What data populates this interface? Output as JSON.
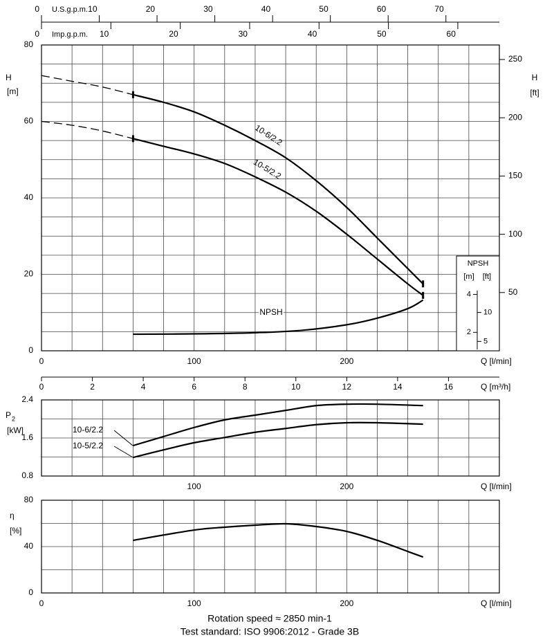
{
  "chart_data": [
    {
      "type": "line",
      "xlabel": "Q [l/min]",
      "ylabel": "H",
      "yunit": "[m]",
      "y2label": "H",
      "y2unit": "[ft]",
      "xlim": [
        0,
        300
      ],
      "xticks": [
        0,
        100,
        200
      ],
      "xgrid": [
        0,
        20,
        40,
        60,
        80,
        100,
        120,
        140,
        160,
        180,
        200,
        220,
        240,
        260,
        280,
        300
      ],
      "ylim": [
        0,
        80
      ],
      "yticks": [
        0,
        20,
        40,
        60,
        80
      ],
      "ygrid": [
        0,
        5,
        10,
        15,
        20,
        25,
        30,
        35,
        40,
        45,
        50,
        55,
        60,
        65,
        70,
        75,
        80
      ],
      "y2lim": [
        0,
        262.47
      ],
      "y2ticks": [
        50,
        100,
        150,
        200,
        250
      ],
      "top_axes": [
        {
          "label": "U.S.g.p.m.",
          "xlim": [
            0,
            79.25
          ],
          "xticks": [
            0,
            10,
            20,
            30,
            40,
            50,
            60,
            70
          ]
        },
        {
          "label": "Imp.g.p.m.",
          "xlim": [
            0,
            65.99
          ],
          "xticks": [
            0,
            10,
            20,
            30,
            40,
            50,
            60
          ]
        }
      ],
      "npsh_axis": {
        "title": "NPSH",
        "unit": "[m]",
        "unit2": "[ft]",
        "ylim": [
          1.1,
          4.2
        ],
        "yticks": [
          2,
          4
        ],
        "y2lim": [
          3.61,
          13.78
        ],
        "y2ticks": [
          5,
          10
        ]
      },
      "series": [
        {
          "name": "10-6/2.2",
          "color": "#000000",
          "segments": [
            {
              "style": "dashed",
              "x": [
                0,
                20,
                40,
                60
              ],
              "values": [
                72,
                70.5,
                69,
                67
              ]
            },
            {
              "style": "solid",
              "x": [
                60,
                80,
                100,
                120,
                140,
                160,
                180,
                200,
                220,
                240,
                250
              ],
              "values": [
                67,
                65,
                62.5,
                59,
                55,
                50.5,
                44.5,
                37.5,
                29.5,
                21.5,
                17.5
              ]
            }
          ]
        },
        {
          "name": "10-5/2.2",
          "color": "#000000",
          "segments": [
            {
              "style": "dashed",
              "x": [
                0,
                20,
                40,
                60
              ],
              "values": [
                60,
                59,
                57.5,
                55.5
              ]
            },
            {
              "style": "solid",
              "x": [
                60,
                80,
                100,
                120,
                140,
                160,
                180,
                200,
                220,
                240,
                250
              ],
              "values": [
                55.5,
                53.5,
                51.5,
                49,
                45.5,
                41.5,
                36.5,
                30.5,
                24,
                17.5,
                14.5
              ]
            }
          ]
        },
        {
          "name": "NPSH",
          "color": "#000000",
          "axis": "npsh",
          "segments": [
            {
              "style": "solid",
              "x": [
                60,
                100,
                140,
                170,
                200,
                220,
                240,
                250
              ],
              "values": [
                1.9,
                1.92,
                1.98,
                2.1,
                2.4,
                2.75,
                3.25,
                3.7
              ]
            }
          ]
        }
      ]
    },
    {
      "type": "line",
      "xlabel": "Q [l/min]",
      "ylabel": "P",
      "ylabel_sub": "2",
      "yunit": "[kW]",
      "top_axis": {
        "label": "Q [m³/h]",
        "xlim": [
          0,
          18
        ],
        "xticks": [
          0,
          2,
          4,
          6,
          8,
          10,
          12,
          14,
          16
        ]
      },
      "xlim": [
        0,
        300
      ],
      "xticks": [
        100,
        200
      ],
      "xgrid": [
        0,
        20,
        40,
        60,
        80,
        100,
        120,
        140,
        160,
        180,
        200,
        220,
        240,
        260,
        280,
        300
      ],
      "ylim": [
        0.8,
        2.4
      ],
      "yticks": [
        0.8,
        1.6,
        2.4
      ],
      "ygrid": [
        0.8,
        1.2,
        1.6,
        2.0,
        2.4
      ],
      "series": [
        {
          "name": "10-6/2.2",
          "color": "#000000",
          "segments": [
            {
              "style": "solid",
              "x": [
                60,
                80,
                100,
                120,
                140,
                160,
                180,
                200,
                220,
                250
              ],
              "values": [
                1.44,
                1.63,
                1.82,
                1.98,
                2.08,
                2.18,
                2.28,
                2.31,
                2.31,
                2.28
              ]
            }
          ]
        },
        {
          "name": "10-5/2.2",
          "color": "#000000",
          "segments": [
            {
              "style": "solid",
              "x": [
                60,
                80,
                100,
                120,
                140,
                160,
                180,
                200,
                220,
                250
              ],
              "values": [
                1.19,
                1.35,
                1.5,
                1.61,
                1.72,
                1.8,
                1.88,
                1.92,
                1.92,
                1.89
              ]
            }
          ]
        }
      ]
    },
    {
      "type": "line",
      "xlabel": "Q [l/min]",
      "ylabel": "η",
      "yunit": "[%]",
      "xlim": [
        0,
        300
      ],
      "xticks": [
        0,
        100,
        200
      ],
      "xgrid": [
        0,
        20,
        40,
        60,
        80,
        100,
        120,
        140,
        160,
        180,
        200,
        220,
        240,
        260,
        280,
        300
      ],
      "ylim": [
        0,
        80
      ],
      "yticks": [
        0,
        40,
        80
      ],
      "ygrid": [
        0,
        20,
        40,
        60,
        80
      ],
      "series": [
        {
          "color": "#000000",
          "segments": [
            {
              "style": "solid",
              "x": [
                60,
                100,
                120,
                140,
                160,
                180,
                200,
                220,
                240,
                250
              ],
              "values": [
                45.4,
                54.3,
                56.7,
                58.5,
                59.7,
                57.3,
                53.1,
                45.4,
                35.8,
                31
              ]
            }
          ]
        }
      ]
    }
  ],
  "footer": [
    "Rotation speed ≈ 2850 min-1",
    "Test standard: ISO 9906:2012 - Grade 3B"
  ]
}
